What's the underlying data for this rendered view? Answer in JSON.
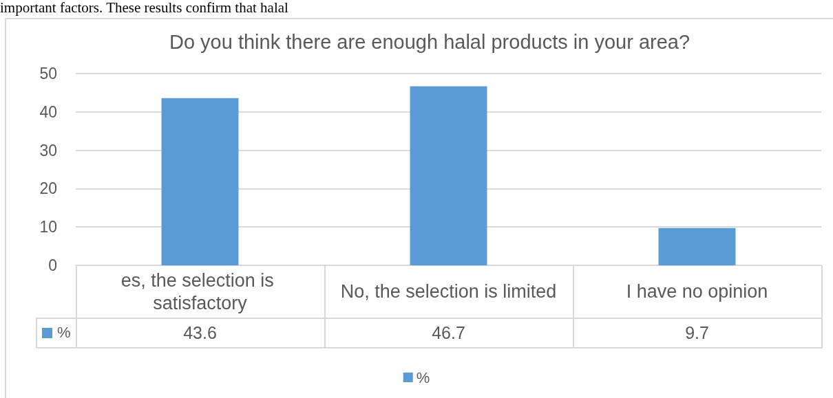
{
  "chart_data": {
    "type": "bar",
    "title": "Do you think there are enough halal products in your area?",
    "categories": [
      "es, the selection is satisfactory",
      "No, the selection is limited",
      "I have no opinion"
    ],
    "series": [
      {
        "name": "%",
        "color": "#5b9bd5",
        "values": [
          43.6,
          46.7,
          9.7
        ]
      }
    ],
    "ylim": [
      0,
      50
    ],
    "yticks": [
      0,
      10,
      20,
      30,
      40,
      50
    ],
    "grid": "y",
    "legend": "bottom",
    "data_labels": true,
    "annotations": [
      "important factors. These results confirm that halal"
    ]
  }
}
